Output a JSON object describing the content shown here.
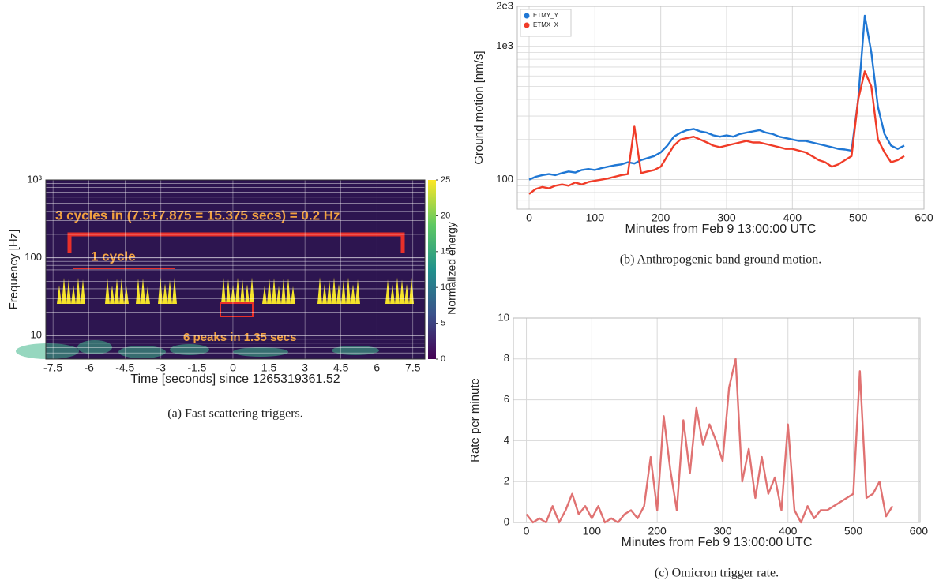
{
  "chart_data": [
    {
      "type": "spectrogram",
      "caption": "(a) Fast scattering triggers.",
      "x_label": "Time [seconds] since 1265319361.52",
      "y_label": "Frequency [Hz]",
      "colorbar_label": "Normalized energy",
      "xlim": [
        -7.8,
        8.0
      ],
      "xticks": [
        -7.5,
        -6,
        -4.5,
        -3,
        -1.5,
        0,
        1.5,
        3,
        4.5,
        6,
        7.5
      ],
      "ylim": [
        5,
        1000
      ],
      "log_y": true,
      "yticks": [
        {
          "value": 1000,
          "label": "10³"
        },
        100,
        10
      ],
      "yminor": [
        6,
        7,
        8,
        9,
        20,
        30,
        40,
        50,
        60,
        70,
        80,
        90,
        200,
        300,
        400,
        500,
        600,
        700,
        800,
        900
      ],
      "clim": [
        0,
        25
      ],
      "cticks": [
        0,
        5,
        10,
        15,
        20,
        25
      ],
      "annotations": [
        "3 cycles in (7.5+7.875 = 15.375 secs) = 0.2 Hz",
        "1 cycle",
        "6 peaks in 1.35 secs"
      ]
    },
    {
      "type": "line",
      "caption": "(b) Anthropogenic band ground motion.",
      "x_label": "Minutes from Feb 9 13:00:00 UTC",
      "y_label": "Ground motion [nm/s]",
      "xlim": [
        -18,
        600
      ],
      "xticks": [
        0,
        100,
        200,
        300,
        400,
        500,
        600
      ],
      "ylim": [
        60,
        2000
      ],
      "log_y": true,
      "yticks": [
        100,
        {
          "value": 1000,
          "label": "1e3"
        },
        {
          "value": 2000,
          "label": "2e3"
        }
      ],
      "yminor": [
        70,
        80,
        90,
        200,
        300,
        400,
        500,
        600,
        700,
        800,
        900
      ],
      "grid": true,
      "legend": "upper-left",
      "x": [
        0,
        10,
        20,
        30,
        40,
        50,
        60,
        70,
        80,
        90,
        100,
        110,
        120,
        130,
        140,
        150,
        160,
        170,
        180,
        190,
        200,
        210,
        220,
        230,
        240,
        250,
        260,
        270,
        280,
        290,
        300,
        310,
        320,
        330,
        340,
        350,
        360,
        370,
        380,
        390,
        400,
        410,
        420,
        430,
        440,
        450,
        460,
        470,
        480,
        490,
        500,
        510,
        520,
        530,
        540,
        550,
        560,
        570
      ],
      "series": [
        {
          "name": "ETMY_Y",
          "color": "#1f77d4",
          "values": [
            100,
            105,
            108,
            110,
            108,
            112,
            115,
            113,
            118,
            120,
            118,
            122,
            125,
            128,
            130,
            135,
            132,
            140,
            145,
            150,
            160,
            180,
            210,
            225,
            235,
            240,
            230,
            225,
            215,
            210,
            215,
            210,
            220,
            225,
            230,
            235,
            225,
            220,
            210,
            205,
            200,
            195,
            195,
            190,
            185,
            180,
            175,
            170,
            168,
            165,
            400,
            1700,
            900,
            350,
            220,
            180,
            170,
            180
          ]
        },
        {
          "name": "ETMX_X",
          "color": "#f03c28",
          "values": [
            78,
            85,
            88,
            86,
            90,
            92,
            90,
            95,
            92,
            96,
            98,
            100,
            102,
            105,
            108,
            110,
            250,
            112,
            115,
            118,
            125,
            150,
            180,
            200,
            205,
            210,
            200,
            190,
            180,
            175,
            180,
            185,
            190,
            195,
            190,
            190,
            185,
            180,
            175,
            170,
            170,
            165,
            160,
            150,
            140,
            135,
            125,
            130,
            140,
            150,
            400,
            650,
            500,
            200,
            160,
            135,
            140,
            150
          ]
        }
      ]
    },
    {
      "type": "line",
      "caption": "(c) Omicron trigger rate.",
      "x_label": "Minutes from Feb 9 13:00:00 UTC",
      "y_label": "Rate per minute",
      "xlim": [
        -20,
        602
      ],
      "xticks": [
        0,
        100,
        200,
        300,
        400,
        500,
        600
      ],
      "ylim": [
        0,
        10
      ],
      "yticks": [
        0,
        2,
        4,
        6,
        8,
        10
      ],
      "grid": true,
      "x": [
        0,
        10,
        20,
        30,
        40,
        50,
        60,
        70,
        80,
        90,
        100,
        110,
        120,
        130,
        140,
        150,
        160,
        170,
        180,
        190,
        200,
        210,
        220,
        230,
        240,
        250,
        260,
        270,
        280,
        290,
        300,
        310,
        320,
        330,
        340,
        350,
        360,
        370,
        380,
        390,
        400,
        410,
        420,
        430,
        440,
        450,
        460,
        470,
        480,
        490,
        500,
        510,
        520,
        530,
        540,
        550,
        560
      ],
      "series": [
        {
          "color": "#e07272",
          "values": [
            0.4,
            0,
            0.2,
            0,
            0.8,
            0,
            0.6,
            1.4,
            0.4,
            0.8,
            0.2,
            0.8,
            0,
            0.2,
            0,
            0.4,
            0.6,
            0.2,
            0.8,
            3.2,
            0.6,
            5.2,
            2.6,
            0.6,
            5.0,
            2.4,
            5.6,
            3.8,
            4.8,
            4.0,
            3.0,
            6.6,
            8.0,
            2.0,
            3.6,
            1.2,
            3.2,
            1.4,
            2.2,
            0.6,
            4.8,
            0.6,
            0,
            0.8,
            0.2,
            0.6,
            0.6,
            0.8,
            1.0,
            1.2,
            1.4,
            7.4,
            1.2,
            1.4,
            2.0,
            0.3,
            0.8
          ]
        }
      ]
    }
  ]
}
